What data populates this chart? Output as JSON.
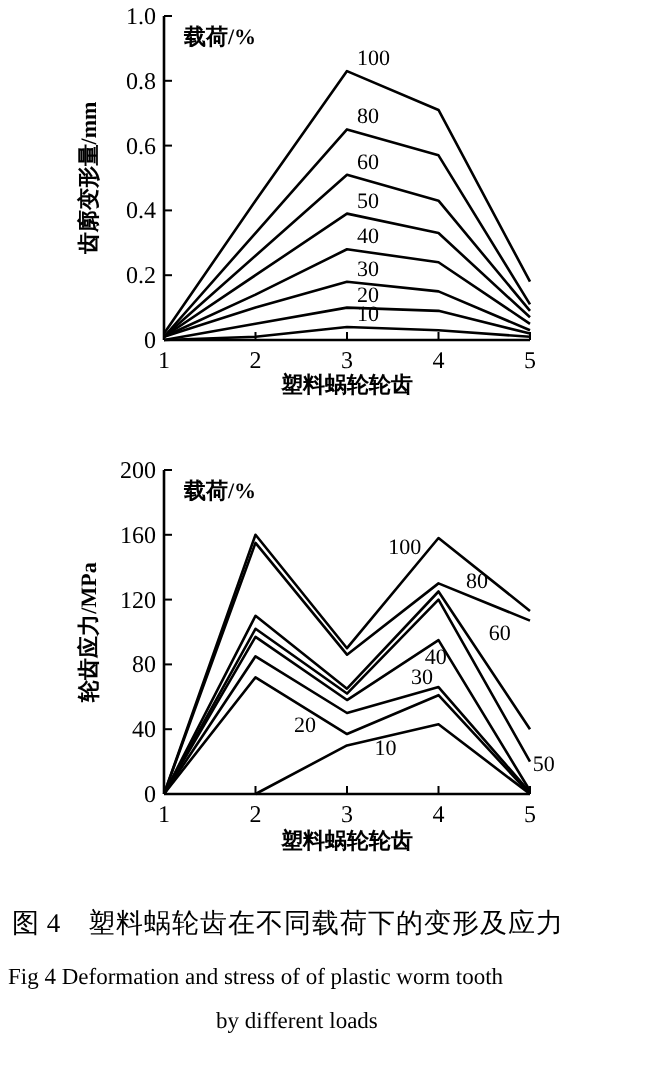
{
  "chart_data": [
    {
      "type": "line",
      "xlabel": "塑料蜗轮轮齿",
      "ylabel": "齿廓变形量/mm",
      "legend_title": "载荷/%",
      "x": [
        1,
        2,
        3,
        4,
        5
      ],
      "xlim": [
        1,
        5
      ],
      "ylim": [
        0,
        1
      ],
      "xticks": [
        1,
        2,
        3,
        4,
        5
      ],
      "yticks": [
        {
          "value": 0,
          "label": "0"
        },
        0.2,
        0.4,
        0.6,
        0.8,
        {
          "value": 1,
          "label": "1.0"
        }
      ],
      "series": [
        {
          "name": "100",
          "color": "#000000",
          "values": [
            0.02,
            0.43,
            0.83,
            0.71,
            0.18
          ]
        },
        {
          "name": "80",
          "color": "#000000",
          "values": [
            0.01,
            0.33,
            0.65,
            0.57,
            0.11
          ]
        },
        {
          "name": "60",
          "color": "#000000",
          "values": [
            0.01,
            0.26,
            0.51,
            0.43,
            0.09
          ]
        },
        {
          "name": "50",
          "color": "#000000",
          "values": [
            0.01,
            0.2,
            0.39,
            0.33,
            0.07
          ]
        },
        {
          "name": "40",
          "color": "#000000",
          "values": [
            0.01,
            0.14,
            0.28,
            0.24,
            0.05
          ]
        },
        {
          "name": "30",
          "color": "#000000",
          "values": [
            0.01,
            0.1,
            0.18,
            0.15,
            0.03
          ]
        },
        {
          "name": "20",
          "color": "#000000",
          "values": [
            0.0,
            0.05,
            0.1,
            0.09,
            0.02
          ]
        },
        {
          "name": "10",
          "color": "#000000",
          "values": [
            0.0,
            0.01,
            0.04,
            0.03,
            0.01
          ]
        }
      ]
    },
    {
      "type": "line",
      "xlabel": "塑料蜗轮轮齿",
      "ylabel": "轮齿应力/MPa",
      "legend_title": "载荷/%",
      "x": [
        1,
        2,
        3,
        4,
        5
      ],
      "xlim": [
        1,
        5
      ],
      "ylim": [
        0,
        200
      ],
      "xticks": [
        1,
        2,
        3,
        4,
        5
      ],
      "yticks": [
        0,
        40,
        80,
        120,
        160,
        200
      ],
      "series": [
        {
          "name": "100",
          "color": "#000000",
          "values": [
            0,
            160,
            90,
            158,
            113
          ]
        },
        {
          "name": "80",
          "color": "#000000",
          "values": [
            0,
            155,
            86,
            130,
            107
          ]
        },
        {
          "name": "60",
          "color": "#000000",
          "values": [
            0,
            110,
            65,
            125,
            40
          ]
        },
        {
          "name": "50",
          "color": "#000000",
          "values": [
            0,
            102,
            62,
            120,
            20
          ]
        },
        {
          "name": "40",
          "color": "#000000",
          "values": [
            0,
            97,
            58,
            95,
            2
          ]
        },
        {
          "name": "30",
          "color": "#000000",
          "values": [
            0,
            85,
            50,
            66,
            1
          ]
        },
        {
          "name": "20",
          "color": "#000000",
          "values": [
            0,
            72,
            37,
            61,
            0
          ]
        },
        {
          "name": "10",
          "color": "#000000",
          "values": [
            null,
            0,
            30,
            43,
            0
          ]
        }
      ],
      "annotations": [
        "图 4　塑料蜗轮齿在不同载荷下的变形及应力",
        "Fig 4 Deformation and stress of of plastic worm tooth",
        "by different loads"
      ]
    }
  ]
}
